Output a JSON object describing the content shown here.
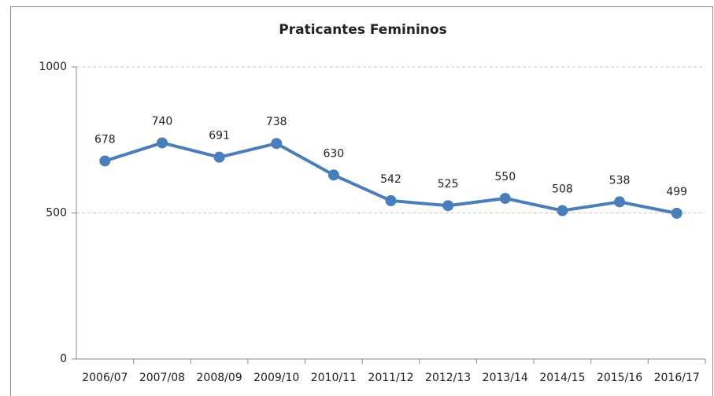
{
  "chart_data": {
    "type": "line",
    "title": "Praticantes Femininos",
    "categories": [
      "2006/07",
      "2007/08",
      "2008/09",
      "2009/10",
      "2010/11",
      "2011/12",
      "2012/13",
      "2013/14",
      "2014/15",
      "2015/16",
      "2016/17"
    ],
    "values": [
      678,
      740,
      691,
      738,
      630,
      542,
      525,
      550,
      508,
      538,
      499
    ],
    "color": "#4a7ebb",
    "ylim": [
      0,
      1000
    ],
    "yticks": [
      0,
      500,
      1000
    ],
    "grid": true
  }
}
